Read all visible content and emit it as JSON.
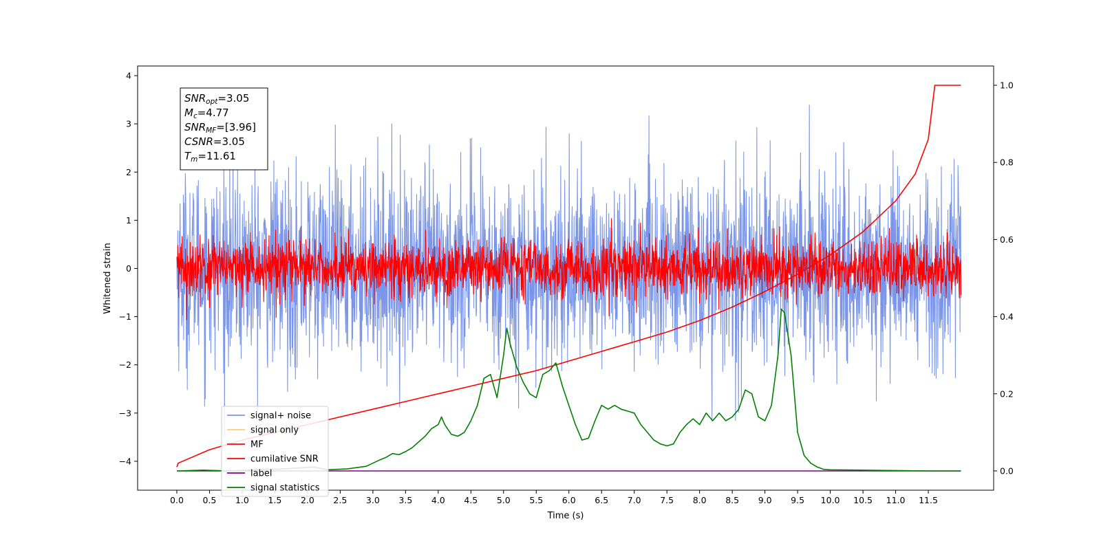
{
  "chart_data": {
    "type": "line",
    "title": "",
    "xlabel": "Time (s)",
    "ylabel": "Whitened strain",
    "xlim": [
      -0.6,
      12.5
    ],
    "ylim": [
      -4.6,
      4.2
    ],
    "y2lim": [
      -0.05,
      1.05
    ],
    "grid": false,
    "legend_position": "lower-left",
    "x_ticks": [
      "0.0",
      "0.5",
      "1.0",
      "1.5",
      "2.0",
      "2.5",
      "3.0",
      "3.5",
      "4.0",
      "4.5",
      "5.0",
      "5.5",
      "6.0",
      "6.5",
      "7.0",
      "7.5",
      "8.0",
      "8.5",
      "9.0",
      "9.5",
      "10.0",
      "10.5",
      "11.0",
      "11.5"
    ],
    "y_ticks": [
      "4",
      "3",
      "2",
      "1",
      "0",
      "−1",
      "−2",
      "−3",
      "−4"
    ],
    "y2_ticks": [
      "1.0",
      "0.8",
      "0.6",
      "0.4",
      "0.2",
      "0.0"
    ],
    "annotation": [
      {
        "base": "SNR",
        "sub": "opt",
        "value": "=3.05"
      },
      {
        "base": "M",
        "sub": "c",
        "value": "=4.77"
      },
      {
        "base": "SNR",
        "sub": "MF",
        "value": "=[3.96]"
      },
      {
        "base": "CSNR",
        "sub": "",
        "value": "=3.05"
      },
      {
        "base": "T",
        "sub": "m",
        "value": "=11.61"
      }
    ],
    "series": [
      {
        "name": "signal+ noise",
        "color": "#7b96e8",
        "axis": "left",
        "kind": "noise",
        "amplitude": 1.0,
        "x_range": [
          0,
          12.0
        ]
      },
      {
        "name": "signal only",
        "color": "#ffcc7a",
        "axis": "left",
        "kind": "flat",
        "values": [],
        "x_range": [
          0,
          12.0
        ]
      },
      {
        "name": "MF",
        "color": "#ff0000",
        "axis": "left",
        "kind": "noise",
        "amplitude": 0.3,
        "x_range": [
          0,
          12.0
        ]
      },
      {
        "name": "cumilative SNR",
        "color": "#ff0000",
        "axis": "right",
        "x": [
          0.0,
          0.02,
          0.5,
          1.0,
          1.5,
          2.0,
          2.5,
          3.0,
          3.5,
          4.0,
          4.5,
          5.0,
          5.5,
          6.0,
          6.5,
          7.0,
          7.5,
          8.0,
          8.5,
          9.0,
          9.5,
          10.0,
          10.5,
          11.0,
          11.3,
          11.5,
          11.6,
          12.0
        ],
        "values": [
          0.01,
          0.02,
          0.055,
          0.08,
          0.1,
          0.12,
          0.14,
          0.16,
          0.18,
          0.2,
          0.22,
          0.24,
          0.26,
          0.285,
          0.31,
          0.335,
          0.36,
          0.39,
          0.425,
          0.465,
          0.51,
          0.56,
          0.62,
          0.7,
          0.77,
          0.86,
          1.0,
          1.0
        ]
      },
      {
        "name": "label",
        "color": "#800080",
        "axis": "right",
        "x": [
          0.0,
          12.0
        ],
        "values": [
          0.0,
          0.0
        ]
      },
      {
        "name": "signal statistics",
        "color": "#008000",
        "axis": "right",
        "x": [
          0.0,
          0.4,
          0.8,
          1.2,
          1.6,
          2.0,
          2.1,
          2.3,
          2.6,
          2.9,
          3.0,
          3.1,
          3.2,
          3.3,
          3.4,
          3.5,
          3.6,
          3.7,
          3.8,
          3.9,
          4.0,
          4.05,
          4.1,
          4.2,
          4.3,
          4.4,
          4.5,
          4.6,
          4.7,
          4.8,
          4.9,
          5.0,
          5.05,
          5.1,
          5.2,
          5.3,
          5.4,
          5.5,
          5.6,
          5.7,
          5.8,
          5.9,
          6.0,
          6.1,
          6.2,
          6.3,
          6.4,
          6.5,
          6.6,
          6.7,
          6.8,
          6.9,
          7.0,
          7.1,
          7.2,
          7.3,
          7.4,
          7.5,
          7.6,
          7.7,
          7.8,
          7.9,
          8.0,
          8.1,
          8.2,
          8.3,
          8.4,
          8.5,
          8.6,
          8.7,
          8.8,
          8.9,
          9.0,
          9.1,
          9.2,
          9.25,
          9.3,
          9.4,
          9.5,
          9.6,
          9.7,
          9.8,
          9.9,
          10.0,
          10.5,
          11.0,
          11.5,
          12.0
        ],
        "values": [
          0.0,
          0.002,
          0.0,
          0.003,
          0.005,
          0.009,
          0.01,
          0.003,
          0.005,
          0.012,
          0.02,
          0.028,
          0.035,
          0.045,
          0.042,
          0.05,
          0.06,
          0.075,
          0.09,
          0.11,
          0.12,
          0.14,
          0.12,
          0.095,
          0.09,
          0.1,
          0.13,
          0.17,
          0.24,
          0.25,
          0.19,
          0.3,
          0.37,
          0.33,
          0.27,
          0.23,
          0.2,
          0.19,
          0.25,
          0.26,
          0.28,
          0.22,
          0.17,
          0.12,
          0.08,
          0.085,
          0.13,
          0.17,
          0.16,
          0.17,
          0.16,
          0.155,
          0.15,
          0.12,
          0.1,
          0.08,
          0.07,
          0.065,
          0.07,
          0.1,
          0.12,
          0.135,
          0.12,
          0.15,
          0.13,
          0.15,
          0.13,
          0.14,
          0.16,
          0.21,
          0.2,
          0.14,
          0.13,
          0.17,
          0.3,
          0.42,
          0.41,
          0.3,
          0.1,
          0.04,
          0.02,
          0.01,
          0.004,
          0.003,
          0.002,
          0.001,
          0.0,
          0.0
        ]
      }
    ]
  }
}
